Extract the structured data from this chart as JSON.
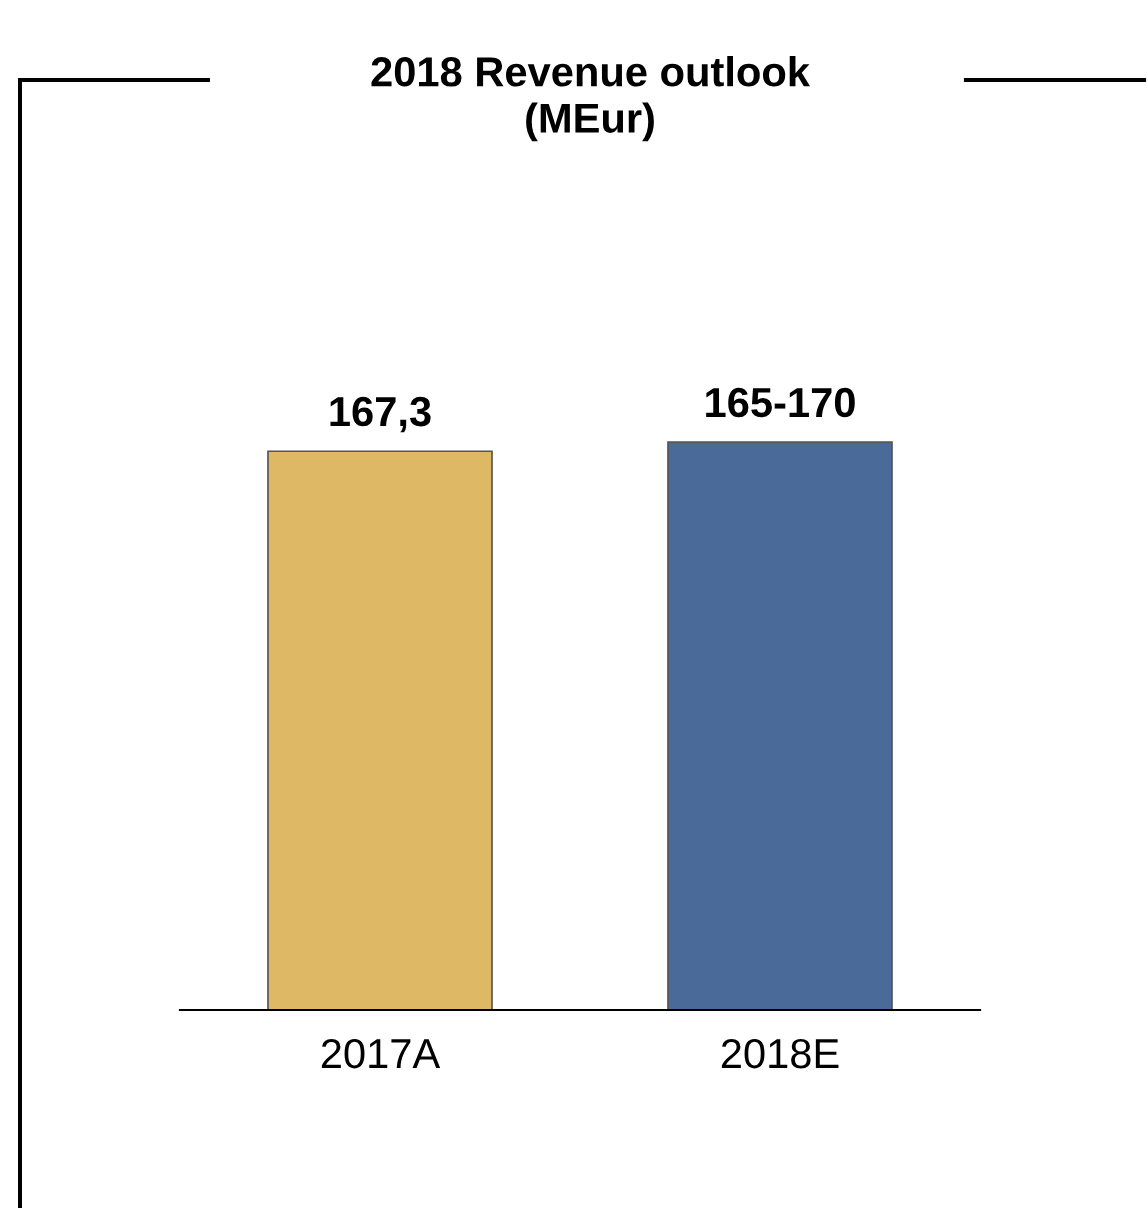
{
  "chart_data": {
    "type": "bar",
    "title": "2018 Revenue outlook\n(MEur)",
    "categories": [
      "2017A",
      "2018E"
    ],
    "values": [
      167.3,
      170
    ],
    "colors": [
      "#dfb865",
      "#4a6a9a"
    ],
    "value_labels": [
      "167,3",
      "165-170"
    ],
    "grid": false,
    "legend": false
  }
}
